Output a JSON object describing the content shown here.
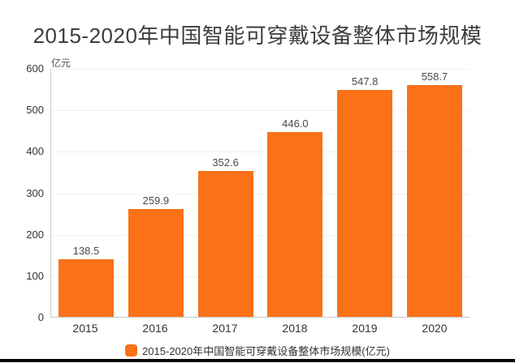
{
  "page": {
    "title": "2015-2020年中国智能可穿戴设备整体市场规模"
  },
  "chart_data": {
    "type": "bar",
    "title": "2015-2020年中国智能可穿戴设备整体市场规模",
    "unit": "亿元",
    "categories": [
      "2015",
      "2016",
      "2017",
      "2018",
      "2019",
      "2020"
    ],
    "values": [
      138.5,
      259.9,
      352.6,
      446.0,
      547.8,
      558.7
    ],
    "value_labels": [
      "138.5",
      "259.9",
      "352.6",
      "446.0",
      "547.8",
      "558.7"
    ],
    "series_name": "2015-2020年中国智能可穿戴设备整体市场规模(亿元)",
    "xlabel": "",
    "ylabel": "亿元",
    "ylim": [
      0,
      600
    ],
    "y_ticks": [
      0,
      100,
      200,
      300,
      400,
      500,
      600
    ],
    "grid": true,
    "legend_position": "bottom",
    "bar_color": "#FA7118"
  },
  "colors": {
    "bar": "#FA7118",
    "axis_line": "#cccccc",
    "gridline": "#f0f0f0",
    "tick_text": "#333333",
    "value_text": "#4a4a4a",
    "title_text": "#3d3d3d",
    "bottom_strip": "#050505",
    "background": "#ffffff"
  }
}
